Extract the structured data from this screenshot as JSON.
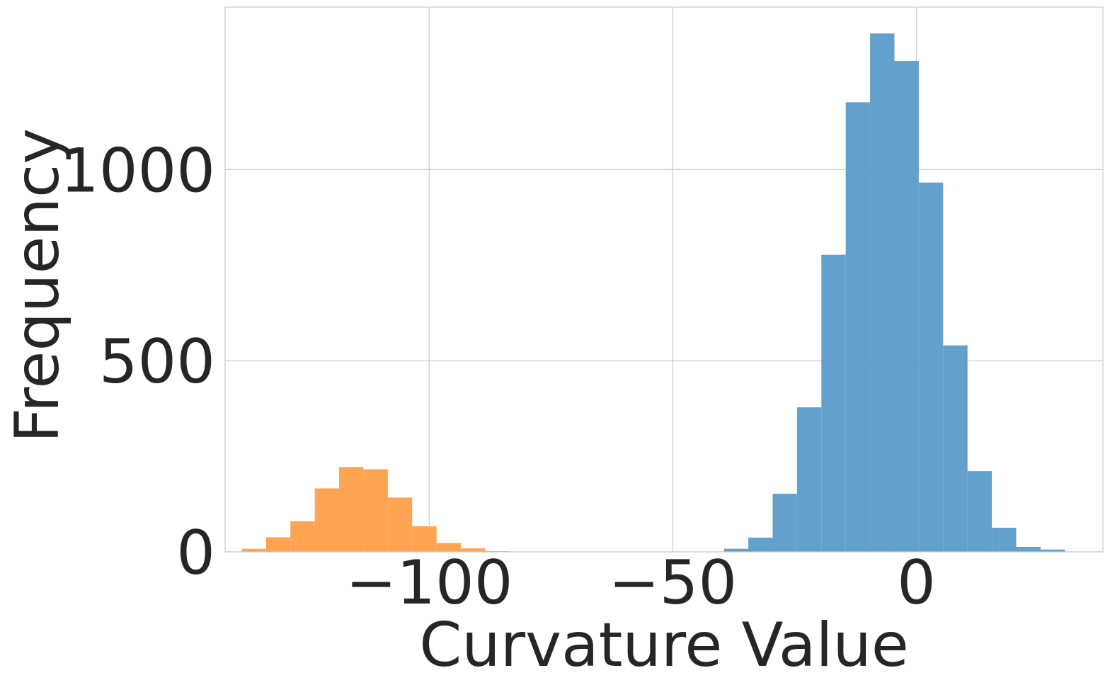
{
  "chart_data": {
    "type": "bar",
    "title": "",
    "xlabel": "Curvature Value",
    "ylabel": "Frequency",
    "xlim": [
      -141.9,
      38.3
    ],
    "ylim": [
      0,
      1425
    ],
    "grid": true,
    "legend": "none",
    "x_ticks": [
      {
        "value": -100,
        "label": "−100"
      },
      {
        "value": -50,
        "label": "−50"
      },
      {
        "value": 0,
        "label": "0"
      }
    ],
    "y_ticks": [
      {
        "value": 0,
        "label": "0"
      },
      {
        "value": 500,
        "label": "500"
      },
      {
        "value": 1000,
        "label": "1000"
      }
    ],
    "series": [
      {
        "color": "#ff9f4a",
        "bin_width": 5,
        "bins": [
          {
            "x0": -138.5,
            "count": 8
          },
          {
            "x0": -133.5,
            "count": 38
          },
          {
            "x0": -128.5,
            "count": 80
          },
          {
            "x0": -123.5,
            "count": 166
          },
          {
            "x0": -118.5,
            "count": 222
          },
          {
            "x0": -113.5,
            "count": 216
          },
          {
            "x0": -108.5,
            "count": 142
          },
          {
            "x0": -103.5,
            "count": 67
          },
          {
            "x0": -98.5,
            "count": 23
          },
          {
            "x0": -93.5,
            "count": 9
          },
          {
            "x0": -88.5,
            "count": 2
          }
        ]
      },
      {
        "color": "#5b9bc8",
        "bin_width": 5,
        "bins": [
          {
            "x0": -39.5,
            "count": 8
          },
          {
            "x0": -34.5,
            "count": 37
          },
          {
            "x0": -29.5,
            "count": 152
          },
          {
            "x0": -24.5,
            "count": 378
          },
          {
            "x0": -19.5,
            "count": 777
          },
          {
            "x0": -14.5,
            "count": 1176
          },
          {
            "x0": -9.5,
            "count": 1356
          },
          {
            "x0": -4.5,
            "count": 1284
          },
          {
            "x0": 0.5,
            "count": 966
          },
          {
            "x0": 5.5,
            "count": 540
          },
          {
            "x0": 10.5,
            "count": 211
          },
          {
            "x0": 15.5,
            "count": 63
          },
          {
            "x0": 20.5,
            "count": 13
          },
          {
            "x0": 25.5,
            "count": 6
          }
        ]
      }
    ]
  }
}
